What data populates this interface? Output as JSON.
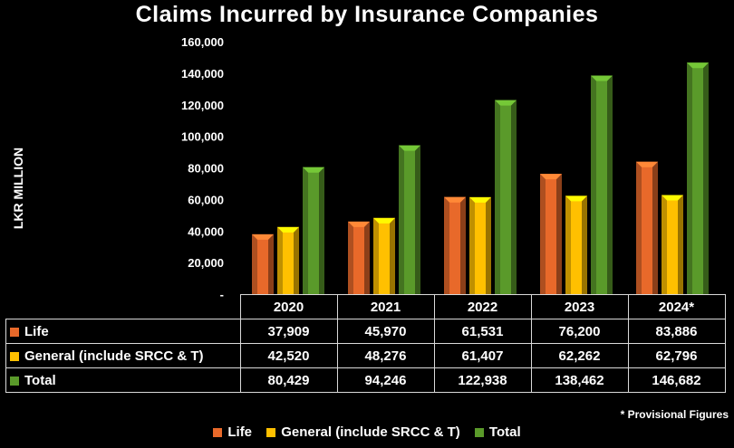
{
  "title": "Claims Incurred by Insurance Companies",
  "note": "* Provisional Figures",
  "chart_data": {
    "type": "bar",
    "title": "Claims Incurred by Insurance Companies",
    "ylabel": "LKR MILLION",
    "ylim": [
      0,
      160000
    ],
    "yticks": [
      "-",
      "20,000",
      "40,000",
      "60,000",
      "80,000",
      "100,000",
      "120,000",
      "140,000",
      "160,000"
    ],
    "categories": [
      "2020",
      "2021",
      "2022",
      "2023",
      "2024*"
    ],
    "series": [
      {
        "name": "Life",
        "color": "#e8692a",
        "values": [
          37909,
          45970,
          61531,
          76200,
          83886
        ],
        "labels": [
          "37,909",
          "45,970",
          "61,531",
          "76,200",
          "83,886"
        ]
      },
      {
        "name": "General (include SRCC & T)",
        "color": "#ffc000",
        "values": [
          42520,
          48276,
          61407,
          62262,
          62796
        ],
        "labels": [
          "42,520",
          "48,276",
          "61,407",
          "62,262",
          "62,796"
        ]
      },
      {
        "name": "Total",
        "color": "#5a9a2a",
        "values": [
          80429,
          94246,
          122938,
          138462,
          146682
        ],
        "labels": [
          "80,429",
          "94,246",
          "122,938",
          "138,462",
          "146,682"
        ]
      }
    ],
    "legend_position": "bottom"
  }
}
